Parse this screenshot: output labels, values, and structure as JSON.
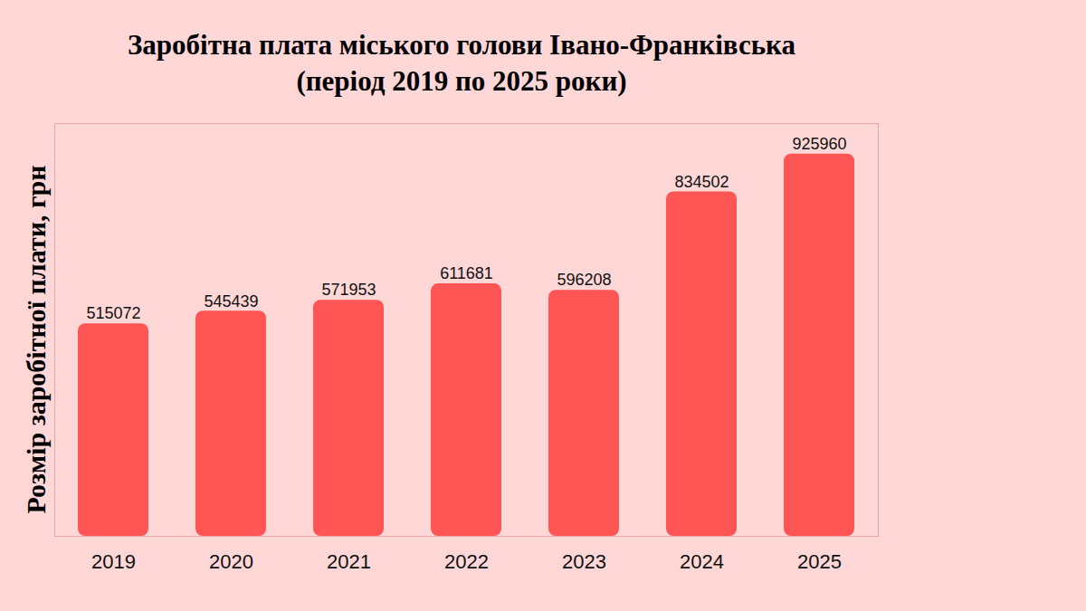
{
  "chart_data": {
    "type": "bar",
    "title": "Заробітна плата міського голови Івано-Франківська",
    "subtitle": "(період 2019 по 2025 роки)",
    "y_label": "Розмір заробітної плати, грн",
    "categories": [
      "2019",
      "2020",
      "2021",
      "2022",
      "2023",
      "2024",
      "2025"
    ],
    "values": [
      515072,
      545439,
      571953,
      611681,
      596208,
      834502,
      925960
    ],
    "color": "#ff5555",
    "ylim": [
      0,
      1000000
    ],
    "data_labels": true,
    "tick_labels": "x",
    "grid": false
  }
}
